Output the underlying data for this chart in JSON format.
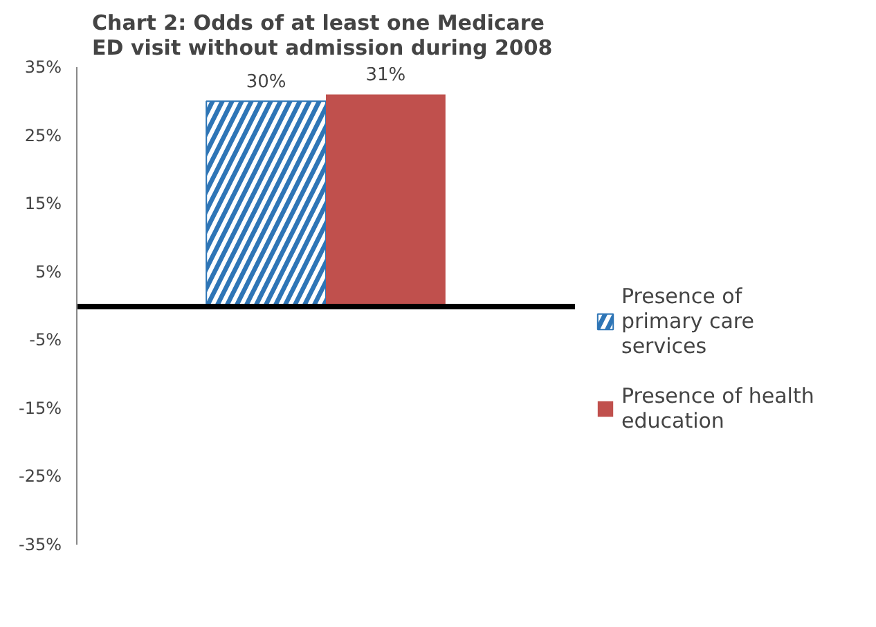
{
  "chart_data": {
    "type": "bar",
    "title": "Chart 2: Odds of at least one Medicare ED visit without  admission during 2008",
    "categories": [
      null
    ],
    "series": [
      {
        "name": "Presence of primary care services",
        "color": "#2e75b6",
        "values": [
          30
        ]
      },
      {
        "name": "Presence of health education",
        "color": "#c0504d",
        "values": [
          31
        ]
      }
    ],
    "ylim": [
      -35,
      35
    ],
    "yticks": [
      {
        "value": -35,
        "label": "-35%"
      },
      {
        "value": -25,
        "label": "-25%"
      },
      {
        "value": -15,
        "label": "-15%"
      },
      {
        "value": -5,
        "label": "-5%"
      },
      {
        "value": 5,
        "label": "5%"
      },
      {
        "value": 15,
        "label": "15%"
      },
      {
        "value": 25,
        "label": "25%"
      },
      {
        "value": 35,
        "label": "35%"
      }
    ],
    "value_labels": [
      [
        "30%"
      ],
      [
        "31%"
      ]
    ],
    "tick_labels": "y",
    "legend": "right"
  }
}
